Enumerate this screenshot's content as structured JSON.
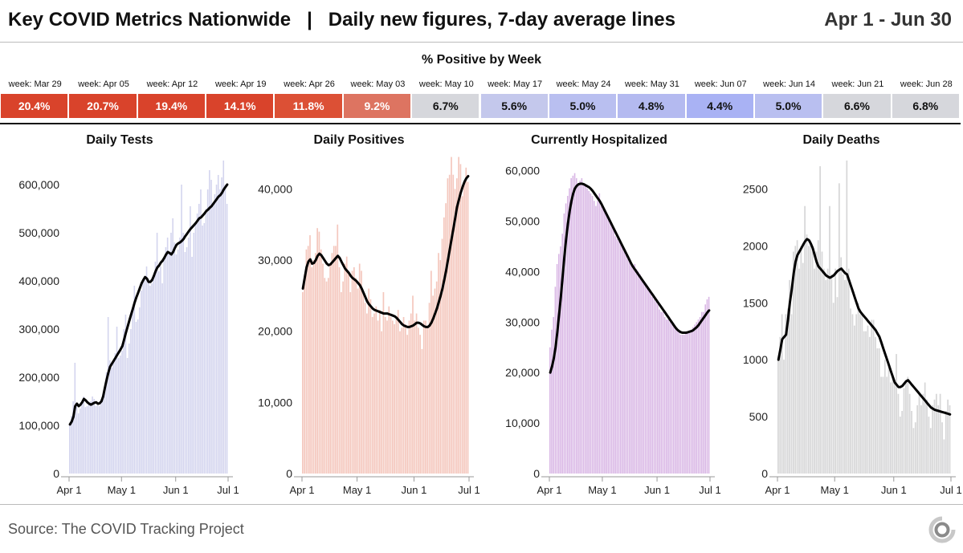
{
  "header": {
    "title": "Key COVID Metrics Nationwide   |   Daily new figures, 7-day average lines",
    "date_range": "Apr 1 - Jun 30"
  },
  "positivity": {
    "title": "% Positive by Week",
    "weeks": [
      {
        "label": "week: Mar 29",
        "value": "20.4%",
        "color": "#d9432b",
        "text_color": "#ffffff"
      },
      {
        "label": "week: Apr 05",
        "value": "20.7%",
        "color": "#d9432b",
        "text_color": "#ffffff"
      },
      {
        "label": "week: Apr 12",
        "value": "19.4%",
        "color": "#d9432b",
        "text_color": "#ffffff"
      },
      {
        "label": "week: Apr 19",
        "value": "14.1%",
        "color": "#d9432b",
        "text_color": "#ffffff"
      },
      {
        "label": "week: Apr 26",
        "value": "11.8%",
        "color": "#dc5035",
        "text_color": "#ffffff"
      },
      {
        "label": "week: May 03",
        "value": "9.2%",
        "color": "#dd7461",
        "text_color": "#ffffff"
      },
      {
        "label": "week: May 10",
        "value": "6.7%",
        "color": "#d6d7dc",
        "text_color": "#111111"
      },
      {
        "label": "week: May 17",
        "value": "5.6%",
        "color": "#c4c8ec",
        "text_color": "#111111"
      },
      {
        "label": "week: May 24",
        "value": "5.0%",
        "color": "#b9bff0",
        "text_color": "#111111"
      },
      {
        "label": "week: May 31",
        "value": "4.8%",
        "color": "#b4baf0",
        "text_color": "#111111"
      },
      {
        "label": "week: Jun 07",
        "value": "4.4%",
        "color": "#a9b2f4",
        "text_color": "#111111"
      },
      {
        "label": "week: Jun 14",
        "value": "5.0%",
        "color": "#b9bff0",
        "text_color": "#111111"
      },
      {
        "label": "week: Jun 21",
        "value": "6.6%",
        "color": "#d6d7dc",
        "text_color": "#111111"
      },
      {
        "label": "week: Jun 28",
        "value": "6.8%",
        "color": "#d6d7dc",
        "text_color": "#111111"
      }
    ]
  },
  "source": "Source: The COVID Tracking Project",
  "chart_data": [
    {
      "type": "bar",
      "title": "Daily Tests",
      "x_ticks": [
        "Apr 1",
        "May 1",
        "Jun 1",
        "Jul 1"
      ],
      "ylim": [
        0,
        650000
      ],
      "yticks": [
        0,
        100000,
        200000,
        300000,
        400000,
        500000,
        600000
      ],
      "ytick_labels": [
        "0",
        "100,000",
        "200,000",
        "300,000",
        "400,000",
        "500,000",
        "600,000"
      ],
      "bar_color": "#d3d4ee",
      "line_color": "#000000",
      "values": [
        102000,
        120000,
        150000,
        230000,
        140000,
        125000,
        135000,
        150000,
        160000,
        138000,
        140000,
        145000,
        150000,
        160000,
        155000,
        140000,
        142000,
        140000,
        150000,
        165000,
        180000,
        210000,
        325000,
        235000,
        220000,
        230000,
        250000,
        305000,
        240000,
        245000,
        255000,
        300000,
        330000,
        240000,
        270000,
        300000,
        345000,
        390000,
        315000,
        320000,
        345000,
        380000,
        400000,
        410000,
        430000,
        405000,
        390000,
        395000,
        410000,
        440000,
        500000,
        420000,
        430000,
        395000,
        450000,
        470000,
        490000,
        460000,
        500000,
        530000,
        480000,
        455000,
        465000,
        490000,
        600000,
        500000,
        460000,
        470000,
        490000,
        555000,
        450000,
        500000,
        520000,
        540000,
        560000,
        590000,
        515000,
        520000,
        550000,
        590000,
        630000,
        610000,
        560000,
        580000,
        600000,
        620000,
        590000,
        615000,
        650000,
        600000,
        560000
      ],
      "avg": [
        102000,
        108000,
        118000,
        140000,
        145000,
        140000,
        143000,
        148000,
        155000,
        152000,
        148000,
        145000,
        143000,
        145000,
        147000,
        148000,
        145000,
        146000,
        150000,
        160000,
        178000,
        195000,
        210000,
        222000,
        228000,
        234000,
        240000,
        246000,
        252000,
        258000,
        265000,
        278000,
        292000,
        305000,
        318000,
        330000,
        342000,
        355000,
        366000,
        375000,
        385000,
        395000,
        402000,
        408000,
        405000,
        398000,
        398000,
        402000,
        410000,
        420000,
        428000,
        432000,
        438000,
        442000,
        448000,
        455000,
        460000,
        458000,
        455000,
        460000,
        468000,
        475000,
        478000,
        480000,
        483000,
        487000,
        493000,
        498000,
        503000,
        508000,
        512000,
        516000,
        520000,
        525000,
        530000,
        532000,
        536000,
        540000,
        545000,
        548000,
        552000,
        555000,
        560000,
        565000,
        570000,
        575000,
        578000,
        583000,
        590000,
        595000,
        600000
      ]
    },
    {
      "type": "bar",
      "title": "Daily Positives",
      "x_ticks": [
        "Apr 1",
        "May 1",
        "Jun 1",
        "Jul 1"
      ],
      "ylim": [
        0,
        44000
      ],
      "yticks": [
        0,
        10000,
        20000,
        30000,
        40000
      ],
      "ytick_labels": [
        "0",
        "10,000",
        "20,000",
        "30,000",
        "40,000"
      ],
      "bar_color": "#f4c7bd",
      "line_color": "#000000",
      "values": [
        25500,
        28000,
        31500,
        32000,
        33500,
        29000,
        30000,
        31000,
        34500,
        34000,
        31500,
        29500,
        27500,
        27000,
        27500,
        29500,
        31000,
        32000,
        32000,
        35000,
        29000,
        25500,
        27000,
        29500,
        30500,
        28000,
        25500,
        28500,
        29000,
        27500,
        26000,
        29500,
        28500,
        25500,
        24000,
        22500,
        26000,
        24500,
        22000,
        22500,
        23500,
        21500,
        23000,
        20000,
        25500,
        22000,
        21500,
        23500,
        22000,
        21500,
        21000,
        22000,
        23000,
        20000,
        20500,
        22000,
        21000,
        19500,
        21500,
        22500,
        25000,
        21500,
        22500,
        20500,
        19500,
        17500,
        21500,
        21500,
        20500,
        24000,
        28500,
        25000,
        26000,
        27000,
        31000,
        30000,
        33000,
        36000,
        38000,
        41500,
        42000,
        44500,
        42000,
        40000,
        41500,
        44500,
        43500,
        39000,
        41000,
        43000,
        41000
      ],
      "avg": [
        26000,
        27500,
        29000,
        29800,
        30100,
        29500,
        29600,
        30000,
        30600,
        30900,
        30700,
        30300,
        29900,
        29500,
        29300,
        29400,
        29700,
        30000,
        30300,
        30600,
        30300,
        29800,
        29300,
        28800,
        28500,
        28200,
        27800,
        27500,
        27300,
        27100,
        26800,
        26500,
        26000,
        25400,
        24800,
        24200,
        23800,
        23500,
        23200,
        23000,
        22900,
        22800,
        22700,
        22600,
        22500,
        22500,
        22500,
        22400,
        22300,
        22200,
        22100,
        21900,
        21600,
        21300,
        21000,
        20800,
        20700,
        20600,
        20600,
        20700,
        20800,
        21000,
        21200,
        21200,
        21100,
        20900,
        20700,
        20600,
        20600,
        20800,
        21200,
        21800,
        22500,
        23200,
        24100,
        25000,
        26000,
        27200,
        28500,
        30000,
        31500,
        33000,
        34500,
        36000,
        37500,
        38500,
        39500,
        40300,
        41000,
        41500,
        41800
      ]
    },
    {
      "type": "bar",
      "title": "Currently Hospitalized",
      "x_ticks": [
        "Apr 1",
        "May 1",
        "Jun 1",
        "Jul 1"
      ],
      "ylim": [
        0,
        62000
      ],
      "yticks": [
        0,
        10000,
        20000,
        30000,
        40000,
        50000,
        60000
      ],
      "ytick_labels": [
        "0",
        "10,000",
        "20,000",
        "30,000",
        "40,000",
        "50,000",
        "60,000"
      ],
      "bar_color": "#d9b7e5",
      "line_color": "#000000",
      "values": [
        25000,
        28500,
        31000,
        37000,
        41500,
        43500,
        45000,
        47500,
        51500,
        53500,
        55000,
        56500,
        58500,
        59000,
        59500,
        58500,
        57500,
        58000,
        58500,
        57500,
        57000,
        56500,
        56000,
        55500,
        55000,
        54000,
        53000,
        54000,
        55500,
        53000,
        52500,
        52000,
        51500,
        50500,
        50000,
        49000,
        48500,
        47000,
        46500,
        46000,
        45500,
        45000,
        44000,
        43500,
        42500,
        42000,
        41500,
        41000,
        41500,
        40500,
        40000,
        39500,
        38500,
        38000,
        37500,
        37000,
        36500,
        36000,
        35000,
        34500,
        34000,
        33500,
        32500,
        32000,
        32000,
        31000,
        30500,
        30500,
        30000,
        30000,
        29500,
        29000,
        28500,
        28000,
        27500,
        27500,
        27500,
        28000,
        28000,
        28000,
        28500,
        29000,
        29500,
        30000,
        30500,
        31000,
        32000,
        32000,
        33500,
        34500,
        35000
      ],
      "avg": [
        20000,
        21200,
        22800,
        25000,
        28000,
        31500,
        35000,
        39000,
        43000,
        46500,
        49500,
        52000,
        54000,
        55500,
        56500,
        57000,
        57300,
        57400,
        57400,
        57300,
        57100,
        56900,
        56700,
        56400,
        56000,
        55500,
        55000,
        54500,
        54000,
        53400,
        52700,
        52000,
        51300,
        50600,
        49900,
        49200,
        48500,
        47800,
        47100,
        46400,
        45700,
        45000,
        44300,
        43600,
        42900,
        42200,
        41500,
        40900,
        40400,
        39900,
        39400,
        38900,
        38400,
        37900,
        37400,
        36900,
        36400,
        35900,
        35400,
        34900,
        34400,
        33900,
        33400,
        32900,
        32400,
        31900,
        31400,
        30900,
        30400,
        29900,
        29400,
        28900,
        28500,
        28200,
        28000,
        27900,
        27900,
        27900,
        28000,
        28100,
        28200,
        28400,
        28700,
        29000,
        29400,
        29900,
        30400,
        30900,
        31400,
        31900,
        32300
      ]
    },
    {
      "type": "bar",
      "title": "Daily Deaths",
      "x_ticks": [
        "Apr 1",
        "May 1",
        "Jun 1",
        "Jul 1"
      ],
      "ylim": [
        0,
        2750
      ],
      "yticks": [
        0,
        500,
        1000,
        1500,
        2000,
        2500
      ],
      "ytick_labels": [
        "0",
        "500",
        "1000",
        "1500",
        "2000",
        "2500"
      ],
      "bar_color": "#d7d7d8",
      "line_color": "#000000",
      "values": [
        1000,
        1200,
        1400,
        1000,
        1400,
        1450,
        1700,
        1400,
        1950,
        2000,
        2050,
        1800,
        2000,
        1850,
        2350,
        2100,
        2000,
        2050,
        1950,
        1800,
        1950,
        2050,
        2700,
        1950,
        1800,
        1700,
        1800,
        2350,
        1750,
        1500,
        1800,
        1550,
        2550,
        1900,
        1750,
        1700,
        2750,
        1800,
        1450,
        1400,
        1300,
        1400,
        1500,
        1400,
        1400,
        1250,
        1250,
        1300,
        1200,
        1350,
        1350,
        1200,
        1100,
        1100,
        850,
        850,
        1000,
        850,
        950,
        800,
        850,
        800,
        1050,
        700,
        500,
        550,
        750,
        800,
        850,
        700,
        550,
        400,
        450,
        600,
        700,
        600,
        700,
        800,
        650,
        500,
        400,
        600,
        650,
        700,
        600,
        700,
        450,
        300,
        550,
        650,
        600
      ],
      "avg": [
        1000,
        1090,
        1180,
        1200,
        1220,
        1350,
        1500,
        1620,
        1760,
        1860,
        1920,
        1950,
        1980,
        2010,
        2040,
        2060,
        2050,
        2020,
        1980,
        1920,
        1860,
        1820,
        1800,
        1780,
        1760,
        1740,
        1730,
        1720,
        1730,
        1740,
        1760,
        1780,
        1790,
        1800,
        1780,
        1760,
        1750,
        1700,
        1650,
        1600,
        1550,
        1500,
        1450,
        1420,
        1400,
        1380,
        1360,
        1340,
        1320,
        1300,
        1280,
        1260,
        1230,
        1200,
        1150,
        1100,
        1050,
        1000,
        950,
        900,
        850,
        800,
        780,
        760,
        760,
        770,
        790,
        810,
        820,
        800,
        780,
        760,
        740,
        720,
        700,
        680,
        660,
        640,
        620,
        600,
        580,
        570,
        560,
        555,
        550,
        545,
        540,
        535,
        530,
        525,
        520
      ]
    }
  ]
}
